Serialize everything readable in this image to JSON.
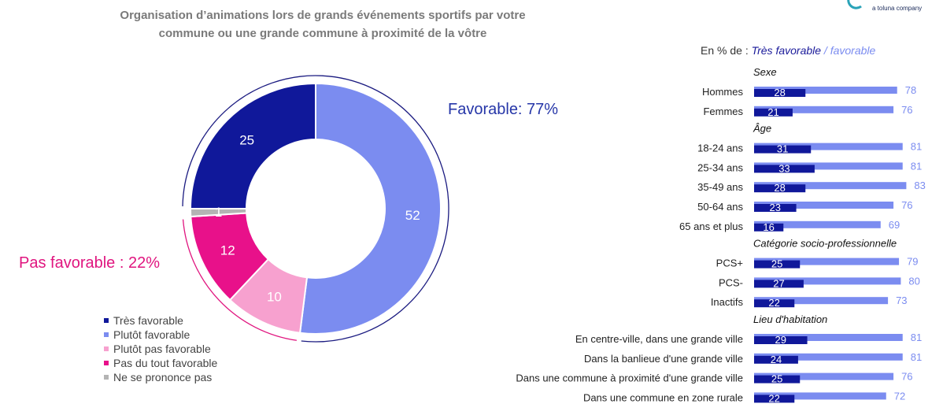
{
  "title": {
    "line1": "Organisation d’animations lors de grands événements sportifs par votre",
    "line2": "commune ou une grande commune à proximité de la vôtre"
  },
  "logo_tagline": "a toluna company",
  "favorable_label": "Favorable: 77%",
  "unfavorable_label": "Pas favorable : 22%",
  "right_header": {
    "prefix": "En % de : ",
    "tres_favorable": "Très favorable",
    "slash": " / ",
    "favorable": "favorable"
  },
  "colors": {
    "tres_favorable": "#10189a",
    "plutot_favorable": "#7b8cf0",
    "plutot_pas_favorable": "#f7a1cf",
    "pas_du_tout": "#e8118a",
    "nsp": "#b4b4b4",
    "fav_arc": "#1a1a80",
    "unfav_arc": "#e0157f"
  },
  "chart_data": [
    {
      "type": "pie",
      "variant": "donut",
      "slices": [
        {
          "label": "Très favorable",
          "value": 25
        },
        {
          "label": "Plutôt favorable",
          "value": 52
        },
        {
          "label": "Plutôt pas favorable",
          "value": 10
        },
        {
          "label": "Pas du tout favorable",
          "value": 12
        },
        {
          "label": "Ne se prononce pas",
          "value": 1
        }
      ],
      "legend_position": "bottom-left"
    },
    {
      "type": "bar",
      "orientation": "horizontal",
      "series": [
        {
          "name": "Très favorable"
        },
        {
          "name": "favorable"
        }
      ],
      "groups": [
        {
          "title": "Sexe",
          "rows": [
            {
              "label": "Hommes",
              "tres": 28,
              "fav": 78
            },
            {
              "label": "Femmes",
              "tres": 21,
              "fav": 76
            }
          ]
        },
        {
          "title": "Âge",
          "rows": [
            {
              "label": "18-24 ans",
              "tres": 31,
              "fav": 81
            },
            {
              "label": "25-34 ans",
              "tres": 33,
              "fav": 81
            },
            {
              "label": "35-49 ans",
              "tres": 28,
              "fav": 83
            },
            {
              "label": "50-64 ans",
              "tres": 23,
              "fav": 76
            },
            {
              "label": "65 ans et plus",
              "tres": 16,
              "fav": 69
            }
          ]
        },
        {
          "title": "Catégorie socio-professionnelle",
          "rows": [
            {
              "label": "PCS+",
              "tres": 25,
              "fav": 79
            },
            {
              "label": "PCS-",
              "tres": 27,
              "fav": 80
            },
            {
              "label": "Inactifs",
              "tres": 22,
              "fav": 73
            }
          ]
        },
        {
          "title": "Lieu d'habitation",
          "rows": [
            {
              "label": "En centre-ville, dans une grande ville",
              "tres": 29,
              "fav": 81
            },
            {
              "label": "Dans la banlieue d'une grande ville",
              "tres": 24,
              "fav": 81
            },
            {
              "label": "Dans une commune à proximité d'une grande ville",
              "tres": 25,
              "fav": 76
            },
            {
              "label": "Dans une commune en zone rurale",
              "tres": 22,
              "fav": 72
            }
          ]
        }
      ]
    }
  ]
}
